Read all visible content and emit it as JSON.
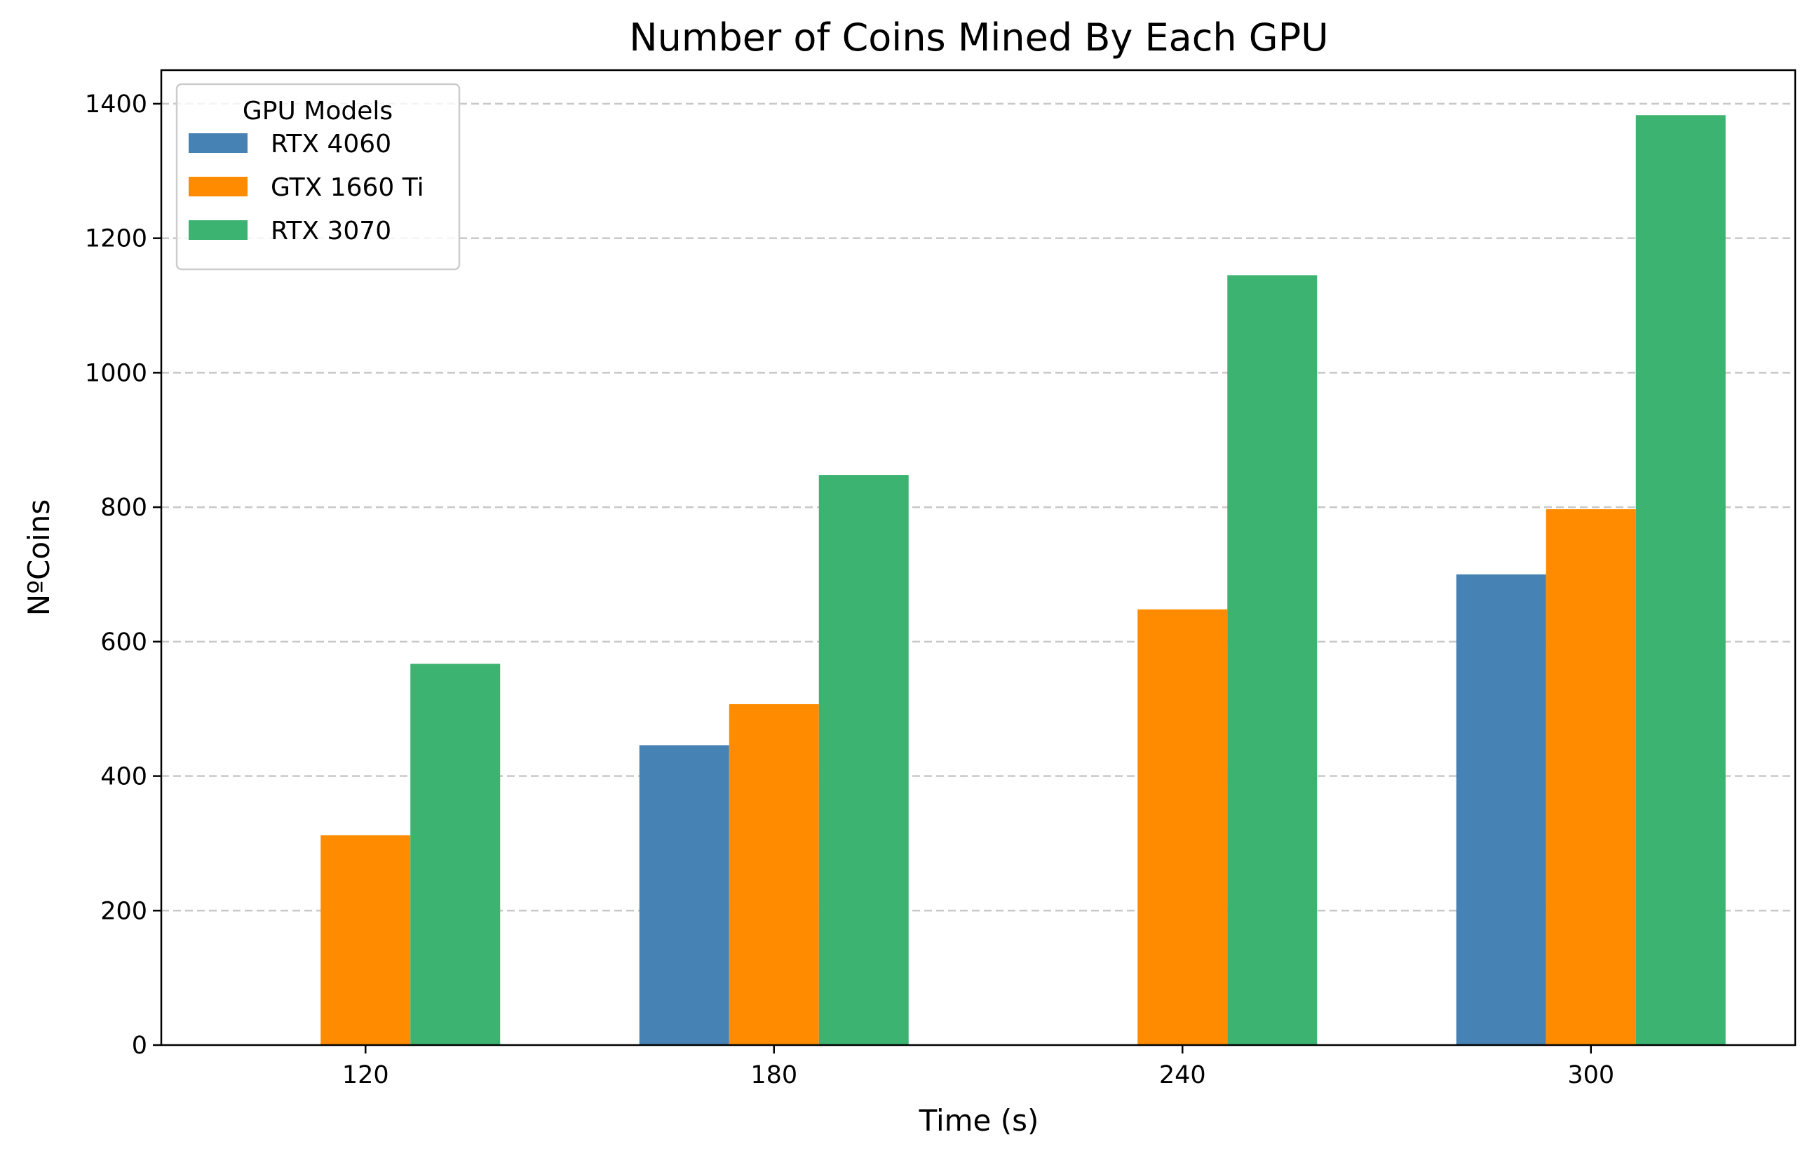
{
  "chart_data": {
    "type": "bar",
    "title": "Number of Coins Mined By Each GPU",
    "xlabel": "Time (s)",
    "ylabel": "NºCoins",
    "categories": [
      "120",
      "180",
      "240",
      "300"
    ],
    "series": [
      {
        "name": "RTX 4060",
        "color": "#4682b4",
        "values": [
          0,
          446,
          0,
          700
        ]
      },
      {
        "name": "GTX 1660 Ti",
        "color": "#ff8c00",
        "values": [
          312,
          507,
          648,
          797
        ]
      },
      {
        "name": "RTX 3070",
        "color": "#3cb371",
        "values": [
          567,
          848,
          1145,
          1383
        ]
      }
    ],
    "ylim": [
      0,
      1450
    ],
    "yticks": [
      "0",
      "200",
      "400",
      "600",
      "800",
      "1000",
      "1200",
      "1400"
    ],
    "grid": "y-dashed",
    "legend": {
      "title": "GPU Models",
      "position": "top-left"
    }
  }
}
